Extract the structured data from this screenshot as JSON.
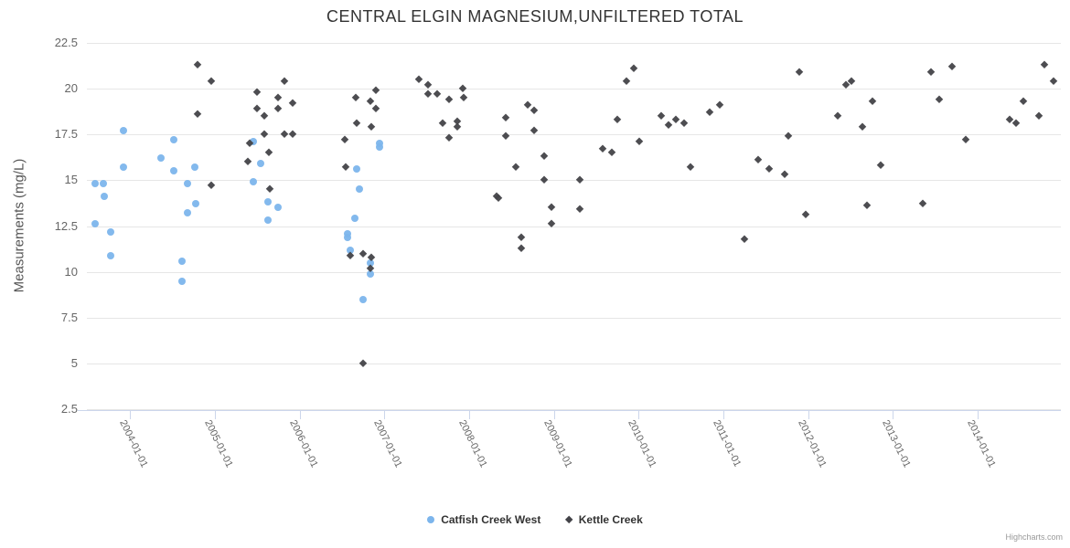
{
  "chart_data": {
    "type": "scatter",
    "title": "CENTRAL ELGIN MAGNESIUM,UNFILTERED TOTAL",
    "grid": "horizontal",
    "legend_position": "bottom-center",
    "y_axis": {
      "title": "Measurements (mg/L)",
      "min": 2.5,
      "max": 22.5,
      "ticks": [
        {
          "value": 22.5,
          "label": "22.5"
        },
        {
          "value": 20,
          "label": "20"
        },
        {
          "value": 17.5,
          "label": "17.5"
        },
        {
          "value": 15,
          "label": "15"
        },
        {
          "value": 12.5,
          "label": "12.5"
        },
        {
          "value": 10,
          "label": "10"
        },
        {
          "value": 7.5,
          "label": "7.5"
        },
        {
          "value": 5,
          "label": "5"
        },
        {
          "value": 2.5,
          "label": "2.5"
        }
      ]
    },
    "x_axis": {
      "min": 2003.49,
      "max": 2014.98,
      "ticks": [
        {
          "value": 2004,
          "label": "2004-01-01"
        },
        {
          "value": 2005,
          "label": "2005-01-01"
        },
        {
          "value": 2006,
          "label": "2006-01-01"
        },
        {
          "value": 2007,
          "label": "2007-01-01"
        },
        {
          "value": 2008,
          "label": "2008-01-01"
        },
        {
          "value": 2009,
          "label": "2009-01-01"
        },
        {
          "value": 2010,
          "label": "2010-01-01"
        },
        {
          "value": 2011,
          "label": "2011-01-01"
        },
        {
          "value": 2012,
          "label": "2012-01-01"
        },
        {
          "value": 2013,
          "label": "2013-01-01"
        },
        {
          "value": 2014,
          "label": "2014-01-01"
        }
      ]
    },
    "series": [
      {
        "name": "Catfish Creek West",
        "color": "#7cb5ec",
        "marker": "circle",
        "data": [
          [
            2003.59,
            14.8
          ],
          [
            2003.68,
            14.8
          ],
          [
            2003.7,
            14.1
          ],
          [
            2003.59,
            12.6
          ],
          [
            2003.77,
            12.2
          ],
          [
            2003.77,
            10.9
          ],
          [
            2003.92,
            17.7
          ],
          [
            2003.92,
            15.7
          ],
          [
            2004.36,
            16.2
          ],
          [
            2004.52,
            17.2
          ],
          [
            2004.52,
            15.5
          ],
          [
            2004.76,
            15.7
          ],
          [
            2004.68,
            14.8
          ],
          [
            2004.77,
            13.7
          ],
          [
            2004.68,
            13.2
          ],
          [
            2004.61,
            10.6
          ],
          [
            2004.61,
            9.5
          ],
          [
            2005.45,
            17.1
          ],
          [
            2005.54,
            15.9
          ],
          [
            2005.45,
            14.9
          ],
          [
            2005.63,
            13.8
          ],
          [
            2005.75,
            13.5
          ],
          [
            2005.63,
            12.8
          ],
          [
            2006.94,
            17.0
          ],
          [
            2006.94,
            16.8
          ],
          [
            2006.67,
            15.6
          ],
          [
            2006.71,
            14.5
          ],
          [
            2006.65,
            12.9
          ],
          [
            2006.56,
            12.1
          ],
          [
            2006.56,
            11.9
          ],
          [
            2006.6,
            11.2
          ],
          [
            2006.83,
            10.5
          ],
          [
            2006.83,
            9.9
          ],
          [
            2006.75,
            8.5
          ]
        ]
      },
      {
        "name": "Kettle Creek",
        "color": "#434348",
        "marker": "diamond",
        "data": [
          [
            2004.8,
            21.3
          ],
          [
            2004.96,
            20.4
          ],
          [
            2004.8,
            18.6
          ],
          [
            2004.96,
            14.7
          ],
          [
            2005.41,
            17.0
          ],
          [
            2005.39,
            16.0
          ],
          [
            2005.5,
            19.8
          ],
          [
            2005.5,
            18.9
          ],
          [
            2005.58,
            18.5
          ],
          [
            2005.58,
            17.5
          ],
          [
            2005.64,
            16.5
          ],
          [
            2005.65,
            14.5
          ],
          [
            2005.75,
            19.5
          ],
          [
            2005.75,
            18.9
          ],
          [
            2005.82,
            20.4
          ],
          [
            2005.82,
            17.5
          ],
          [
            2005.92,
            19.2
          ],
          [
            2005.92,
            17.5
          ],
          [
            2006.53,
            17.2
          ],
          [
            2006.54,
            15.7
          ],
          [
            2006.66,
            19.5
          ],
          [
            2006.67,
            18.1
          ],
          [
            2006.6,
            10.9
          ],
          [
            2006.75,
            11.0
          ],
          [
            2006.84,
            10.8
          ],
          [
            2006.83,
            10.2
          ],
          [
            2006.83,
            19.3
          ],
          [
            2006.84,
            17.9
          ],
          [
            2006.9,
            19.9
          ],
          [
            2006.9,
            18.9
          ],
          [
            2006.75,
            5.0
          ],
          [
            2007.41,
            20.5
          ],
          [
            2007.51,
            20.2
          ],
          [
            2007.51,
            19.7
          ],
          [
            2007.62,
            19.7
          ],
          [
            2007.69,
            18.1
          ],
          [
            2007.76,
            19.4
          ],
          [
            2007.76,
            17.3
          ],
          [
            2007.86,
            18.2
          ],
          [
            2007.86,
            17.9
          ],
          [
            2007.92,
            20.0
          ],
          [
            2007.94,
            19.5
          ],
          [
            2008.32,
            14.1
          ],
          [
            2008.35,
            14.0
          ],
          [
            2008.43,
            18.4
          ],
          [
            2008.43,
            17.4
          ],
          [
            2008.55,
            15.7
          ],
          [
            2008.61,
            11.9
          ],
          [
            2008.61,
            11.3
          ],
          [
            2008.69,
            19.1
          ],
          [
            2008.77,
            18.8
          ],
          [
            2008.77,
            17.7
          ],
          [
            2008.88,
            16.3
          ],
          [
            2008.88,
            15.0
          ],
          [
            2008.97,
            13.5
          ],
          [
            2008.97,
            12.6
          ],
          [
            2009.31,
            15.0
          ],
          [
            2009.31,
            13.4
          ],
          [
            2009.58,
            16.7
          ],
          [
            2009.68,
            16.5
          ],
          [
            2009.75,
            18.3
          ],
          [
            2009.86,
            20.4
          ],
          [
            2009.94,
            21.1
          ],
          [
            2010.01,
            17.1
          ],
          [
            2010.27,
            18.5
          ],
          [
            2010.35,
            18.0
          ],
          [
            2010.44,
            18.3
          ],
          [
            2010.53,
            18.1
          ],
          [
            2010.61,
            15.7
          ],
          [
            2010.84,
            18.7
          ],
          [
            2010.96,
            19.1
          ],
          [
            2011.25,
            11.8
          ],
          [
            2011.41,
            16.1
          ],
          [
            2011.54,
            15.6
          ],
          [
            2011.72,
            15.3
          ],
          [
            2011.77,
            17.4
          ],
          [
            2011.89,
            20.9
          ],
          [
            2011.97,
            13.1
          ],
          [
            2012.35,
            18.5
          ],
          [
            2012.45,
            20.2
          ],
          [
            2012.51,
            20.4
          ],
          [
            2012.64,
            17.9
          ],
          [
            2012.69,
            13.6
          ],
          [
            2012.76,
            19.3
          ],
          [
            2012.86,
            15.8
          ],
          [
            2013.35,
            13.7
          ],
          [
            2013.45,
            20.9
          ],
          [
            2013.54,
            19.4
          ],
          [
            2013.7,
            21.2
          ],
          [
            2013.86,
            17.2
          ],
          [
            2014.38,
            18.3
          ],
          [
            2014.45,
            18.1
          ],
          [
            2014.54,
            19.3
          ],
          [
            2014.72,
            18.5
          ],
          [
            2014.79,
            21.3
          ],
          [
            2014.89,
            20.4
          ]
        ]
      }
    ]
  },
  "credit": {
    "label": "Highcharts.com"
  }
}
